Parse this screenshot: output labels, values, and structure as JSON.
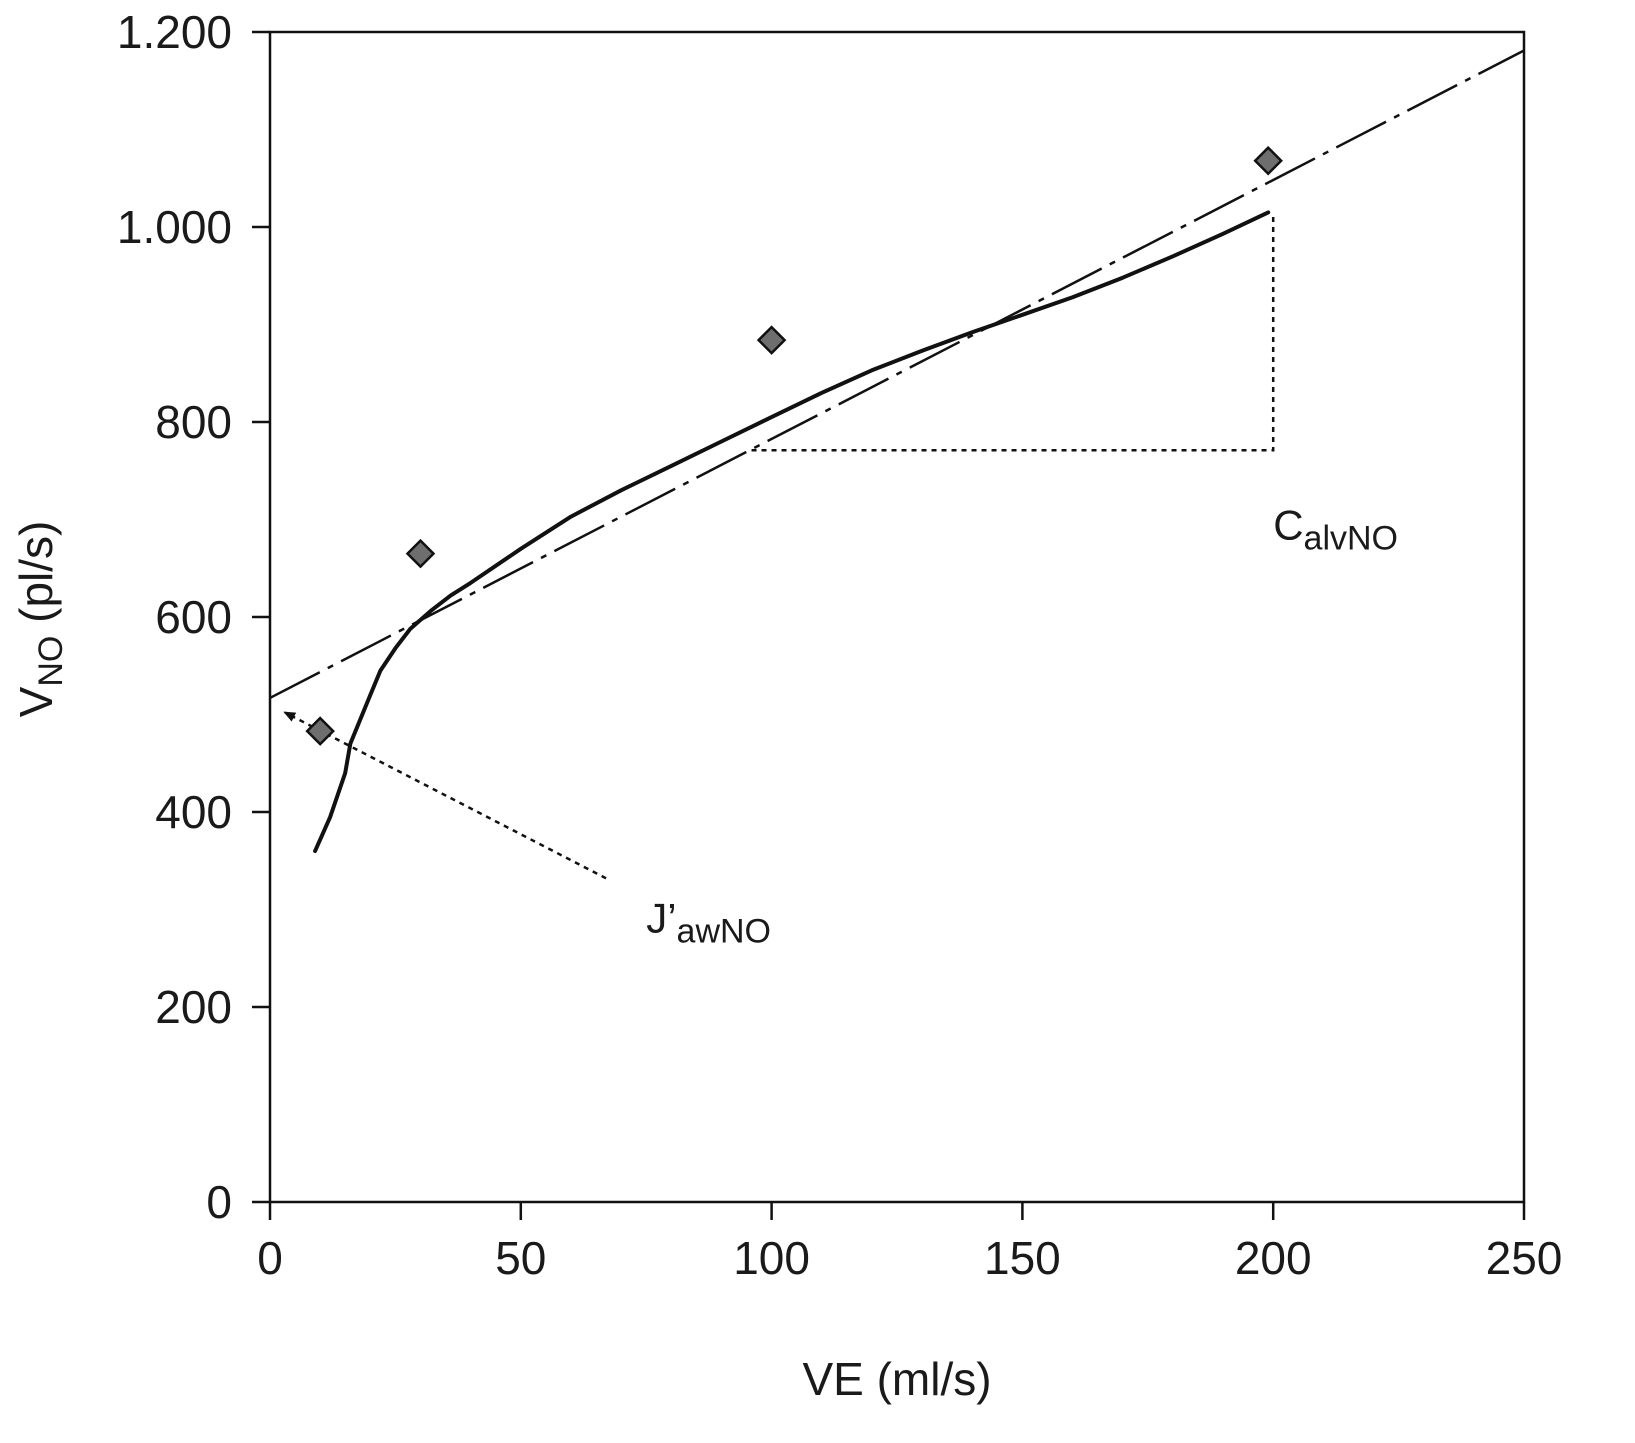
{
  "chart_data": {
    "type": "scatter",
    "title": "",
    "xlabel": "VE (ml/s)",
    "ylabel_main": "V",
    "ylabel_sub": "NO",
    "ylabel_unit": " (pl/s)",
    "xlim": [
      0,
      250
    ],
    "ylim": [
      0,
      1200
    ],
    "x_ticks": [
      0,
      50,
      100,
      150,
      200,
      250
    ],
    "x_tick_labels": [
      "0",
      "50",
      "100",
      "150",
      "200",
      "250"
    ],
    "y_ticks": [
      0,
      200,
      400,
      600,
      800,
      1000,
      1200
    ],
    "y_tick_labels": [
      "0",
      "200",
      "400",
      "600",
      "800",
      "1.000",
      "1.200"
    ],
    "grid": false,
    "series": [
      {
        "style": "markers-diamond",
        "color": "#6e6e6e",
        "x": [
          10,
          30,
          100,
          199
        ],
        "y": [
          483,
          665,
          884,
          1068
        ]
      },
      {
        "style": "solid-curve",
        "color": "#111111",
        "x": [
          9,
          12,
          15,
          16,
          18,
          20,
          22,
          25,
          28,
          32,
          36,
          40,
          50,
          60,
          70,
          80,
          90,
          100,
          110,
          120,
          130,
          140,
          150,
          160,
          170,
          180,
          190,
          199
        ],
        "y": [
          360,
          395,
          440,
          470,
          495,
          520,
          545,
          568,
          588,
          606,
          622,
          635,
          670,
          703,
          730,
          755,
          780,
          805,
          830,
          853,
          873,
          892,
          910,
          928,
          948,
          970,
          993,
          1015
        ]
      },
      {
        "style": "dash-dot-line",
        "color": "#111111",
        "x": [
          0,
          250
        ],
        "y": [
          517,
          1181
        ]
      }
    ],
    "annotations": [
      {
        "text_main": "C",
        "text_sub": "alvNO",
        "target": "slope-triangle"
      },
      {
        "text_main": "J’",
        "text_sub": "awNO",
        "target": "intercept-arrow"
      }
    ],
    "slope_triangle": {
      "x": [
        96,
        200
      ],
      "y": [
        771,
        1015
      ]
    },
    "intercept_arrow": {
      "from": [
        67,
        332
      ],
      "to": [
        3,
        502
      ]
    }
  }
}
